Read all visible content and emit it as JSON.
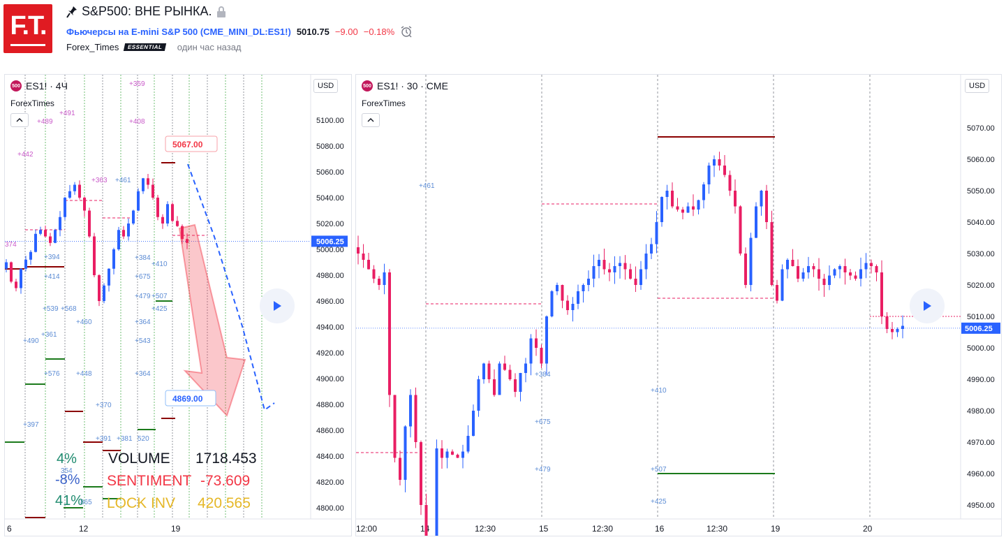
{
  "header": {
    "logo_text": "F.T.",
    "title": "S&P500: ВНЕ РЫНКА.",
    "symbol_desc": "Фьючерсы на E-mini S&P 500",
    "symbol_code": "(CME_MINI_DL:ES1!)",
    "price": "5010.75",
    "change": "−9.00",
    "change_pct": "−0.18%",
    "author": "Forex_Times",
    "badge": "ESSENTIAL",
    "published": "один час назад"
  },
  "left_chart": {
    "badge": "500",
    "symbol_label": "ES1! · 4Ч",
    "indicator": "ForexTimes",
    "currency": "USD",
    "price_labels": [
      "5100.00",
      "5080.00",
      "5060.00",
      "5040.00",
      "5020.00",
      "5000.00",
      "4980.00",
      "4960.00",
      "4940.00",
      "4920.00",
      "4900.00",
      "4880.00",
      "4860.00",
      "4840.00",
      "4820.00",
      "4800.00"
    ],
    "current_price": "5006.25",
    "x_labels": [
      "6",
      "12",
      "19"
    ],
    "callout_high": "5067.00",
    "callout_low": "4869.00",
    "stats": {
      "pct_top": "4%",
      "pct_mid": "-8%",
      "pct_bot": "41%",
      "volume_label": "VOLUME",
      "volume_value": "1718.453",
      "sentiment_label": "SENTIMENT",
      "sentiment_value": "-73.609",
      "lockinv_label": "LOCK INV",
      "lockinv_value": "420.565"
    },
    "annotations_pink": [
      "+359",
      "+489",
      "+491",
      "+408",
      "+442",
      "+363",
      "374"
    ],
    "annotations_blue": [
      "+461",
      "+394",
      "+414",
      "+384",
      "+675",
      "+410",
      "+539",
      "+568",
      "+479",
      "+507",
      "+425",
      "+460",
      "+364",
      "+490",
      "+361",
      "+543",
      "+576",
      "+448",
      "+364",
      "+370",
      "+397",
      "+391",
      "+381",
      "520",
      "354",
      "865"
    ]
  },
  "right_chart": {
    "badge": "500",
    "symbol_label": "ES1! · 30 · CME",
    "indicator": "ForexTimes",
    "currency": "USD",
    "price_labels": [
      "5070.00",
      "5060.00",
      "5050.00",
      "5040.00",
      "5030.00",
      "5020.00",
      "5010.00",
      "5000.00",
      "4990.00",
      "4980.00",
      "4970.00",
      "4960.00",
      "4950.00"
    ],
    "current_price": "5006.25",
    "x_labels": [
      "12:00",
      "14",
      "12:30",
      "15",
      "12:30",
      "16",
      "12:30",
      "19",
      "20"
    ],
    "annotations": [
      "+461",
      "+384",
      "+675",
      "+479",
      "+410",
      "+507",
      "+425"
    ]
  },
  "colors": {
    "up": "#2962ff",
    "down": "#e91e63",
    "price_tag": "#2962ff",
    "sentiment": "#f23645",
    "lockinv": "#e5b727"
  }
}
